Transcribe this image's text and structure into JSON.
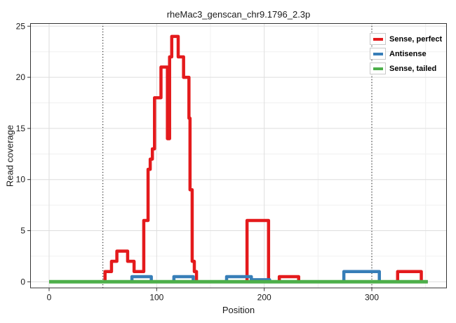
{
  "title": "rheMac3_genscan_chr9.1796_2.3p",
  "chart_data": {
    "type": "line",
    "subtype": "step-coverage",
    "title": "rheMac3_genscan_chr9.1796_2.3p",
    "xlabel": "Position",
    "ylabel": "Read coverage",
    "xticks": [
      0,
      100,
      200,
      300
    ],
    "yticks": [
      0,
      5,
      10,
      15,
      20,
      25
    ],
    "x_minor": [
      50,
      150,
      250,
      350
    ],
    "y_minor": [
      2.5,
      7.5,
      12.5,
      17.5,
      22.5
    ],
    "xlim": [
      -18,
      370
    ],
    "ylim": [
      -0.7,
      25.3
    ],
    "grid": "on",
    "legend_position": "top-right-inside",
    "dotted_vlines": [
      50,
      300
    ],
    "x_start": 0,
    "x_end": 352,
    "series": [
      {
        "name": "Sense, perfect",
        "color": "#E41A1C",
        "steps": [
          [
            0,
            0
          ],
          [
            52,
            1
          ],
          [
            58,
            2
          ],
          [
            63,
            3
          ],
          [
            73,
            2
          ],
          [
            79,
            1
          ],
          [
            88,
            6
          ],
          [
            92,
            11
          ],
          [
            94,
            12
          ],
          [
            96,
            13
          ],
          [
            98,
            18
          ],
          [
            104,
            21
          ],
          [
            110,
            14
          ],
          [
            112,
            22
          ],
          [
            114,
            24
          ],
          [
            120,
            22
          ],
          [
            125,
            20
          ],
          [
            130,
            16
          ],
          [
            131,
            9
          ],
          [
            133,
            2
          ],
          [
            135,
            1
          ],
          [
            137,
            0
          ],
          [
            184,
            6
          ],
          [
            204,
            0
          ],
          [
            214,
            0.5
          ],
          [
            232,
            0
          ],
          [
            324,
            1
          ],
          [
            346,
            0
          ]
        ]
      },
      {
        "name": "Antisense",
        "color": "#377EB8",
        "steps": [
          [
            0,
            0
          ],
          [
            77,
            0.5
          ],
          [
            95,
            0
          ],
          [
            116,
            0.5
          ],
          [
            134,
            0
          ],
          [
            165,
            0.5
          ],
          [
            188,
            0.2
          ],
          [
            205,
            0
          ],
          [
            274,
            1
          ],
          [
            307,
            0
          ]
        ]
      },
      {
        "name": "Sense, tailed",
        "color": "#4DAF4A",
        "steps": [
          [
            0,
            0
          ]
        ]
      }
    ]
  },
  "style_colors": {
    "grid_major": "#dedede",
    "grid_minor": "#f0f0f0",
    "panel_border": "#333333",
    "tick_color": "#333333",
    "dotted_line": "#000000"
  }
}
